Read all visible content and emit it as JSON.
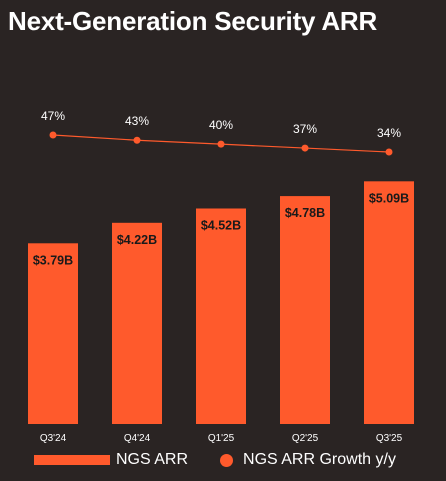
{
  "title": "Next-Generation Security ARR",
  "colors": {
    "bar": "#ff5a2c",
    "line": "#ff5a2c",
    "background": "#2a2423"
  },
  "chart_data": {
    "type": "bar",
    "categories": [
      "Q3'24",
      "Q4'24",
      "Q1'25",
      "Q2'25",
      "Q3'25"
    ],
    "series": [
      {
        "name": "NGS ARR",
        "type": "bar",
        "values": [
          3.79,
          4.22,
          4.52,
          4.78,
          5.09
        ],
        "labels": [
          "$3.79B",
          "$4.22B",
          "$4.52B",
          "$4.78B",
          "$5.09B"
        ]
      },
      {
        "name": "NGS ARR Growth y/y",
        "type": "line",
        "values": [
          47,
          43,
          40,
          37,
          34
        ],
        "labels": [
          "47%",
          "43%",
          "40%",
          "37%",
          "34%"
        ]
      }
    ],
    "ylim": [
      0,
      5.6
    ],
    "legend": "bottom"
  }
}
